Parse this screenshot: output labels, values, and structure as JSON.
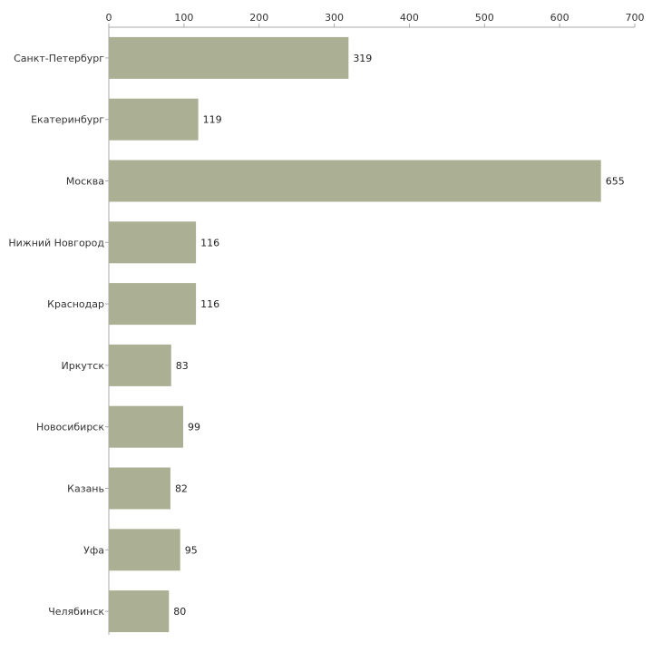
{
  "chart_data": {
    "type": "bar",
    "orientation": "horizontal",
    "categories": [
      "Санкт-Петербург",
      "Екатеринбург",
      "Москва",
      "Нижний Новгород",
      "Краснодар",
      "Иркутск",
      "Новосибирск",
      "Казань",
      "Уфа",
      "Челябинск"
    ],
    "values": [
      319,
      119,
      655,
      116,
      116,
      83,
      99,
      82,
      95,
      80
    ],
    "xlim": [
      0,
      700
    ],
    "ticks": [
      0,
      100,
      200,
      300,
      400,
      500,
      600,
      700
    ],
    "title": "",
    "xlabel": "",
    "ylabel": "",
    "axis_position": "top",
    "grid": false,
    "bar_color": "#abb095",
    "axis_color": "#aaaaaa"
  }
}
